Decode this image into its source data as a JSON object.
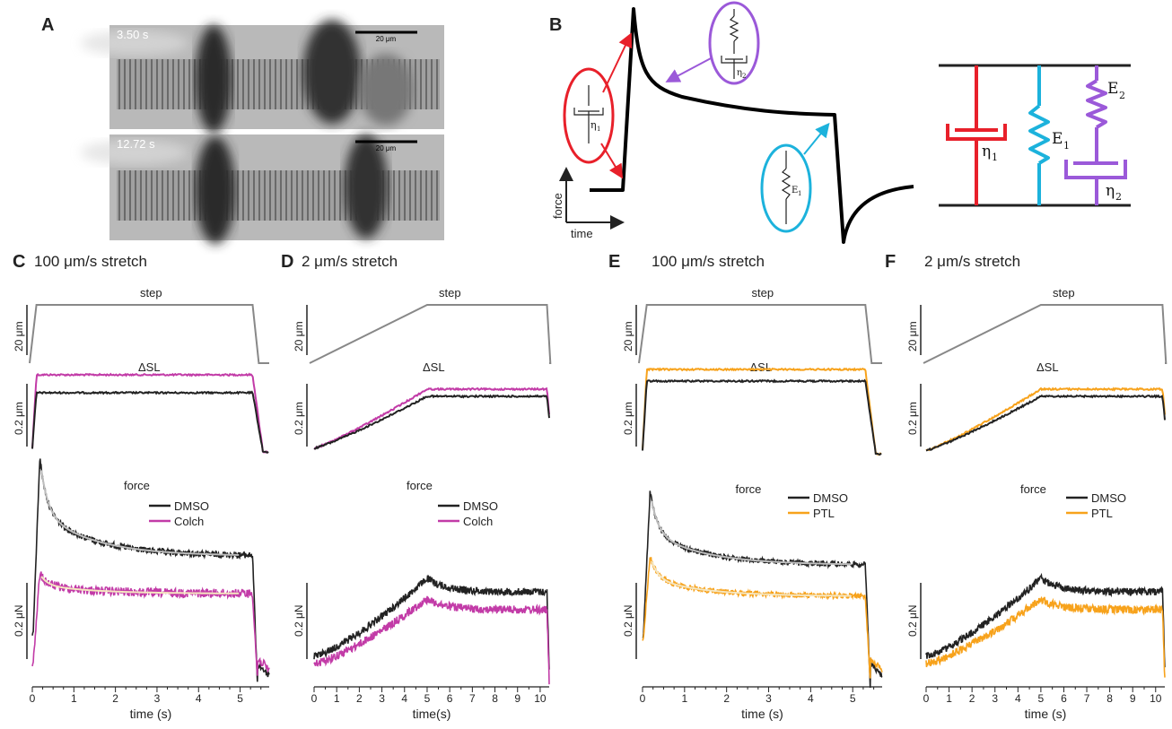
{
  "panel_A": {
    "label": "A",
    "frames": [
      {
        "time": "3.50 s",
        "scalebar": "20 μm"
      },
      {
        "time": "12.72 s",
        "scalebar": "20 μm"
      }
    ]
  },
  "panel_B": {
    "label": "B",
    "axis_y": "force",
    "axis_x": "time",
    "elements": {
      "eta1": "η",
      "eta1_sub": "1",
      "eta2": "η",
      "eta2_sub": "2",
      "E1": "E",
      "E1_sub": "1",
      "E2": "E",
      "E2_sub": "2"
    },
    "colors": {
      "eta1": "#e8202a",
      "E1": "#1cb2dc",
      "E2_eta2": "#9b59d9",
      "trace": "#000000"
    }
  },
  "chart_data": [
    {
      "panel": "C",
      "type": "line",
      "title": "100 μm/s stretch",
      "duration": 5,
      "traces": {
        "step": "step",
        "dsl": "ΔSL",
        "force": "force"
      },
      "scalebars": {
        "step": "20 μm",
        "dsl": "0.2 μm",
        "force": "0.2 μN"
      },
      "series": [
        {
          "name": "DMSO",
          "color": "#222222"
        },
        {
          "name": "Colch",
          "color": "#c23ba7"
        }
      ],
      "xlabel": "time (s)",
      "xticks": [
        "0",
        "1",
        "2",
        "3",
        "4",
        "5"
      ],
      "xlim": [
        0,
        5.7
      ]
    },
    {
      "panel": "D",
      "type": "line",
      "title": "2 μm/s stretch",
      "duration": 10,
      "traces": {
        "step": "step",
        "dsl": "ΔSL",
        "force": "force"
      },
      "scalebars": {
        "step": "20 μm",
        "dsl": "0.2 μm",
        "force": "0.2 μN"
      },
      "series": [
        {
          "name": "DMSO",
          "color": "#222222"
        },
        {
          "name": "Colch",
          "color": "#c23ba7"
        }
      ],
      "xlabel": "time(s)",
      "xticks": [
        "0",
        "1",
        "2",
        "3",
        "4",
        "5",
        "6",
        "7",
        "8",
        "9",
        "10"
      ],
      "xlim": [
        0,
        10.4
      ]
    },
    {
      "panel": "E",
      "type": "line",
      "title": "100 μm/s stretch",
      "duration": 5,
      "traces": {
        "step": "step",
        "dsl": "ΔSL",
        "force": "force"
      },
      "scalebars": {
        "step": "20 μm",
        "dsl": "0.2 μm",
        "force": "0.2 μN"
      },
      "series": [
        {
          "name": "DMSO",
          "color": "#222222"
        },
        {
          "name": "PTL",
          "color": "#f7a21b"
        }
      ],
      "xlabel": "time (s)",
      "xticks": [
        "0",
        "1",
        "2",
        "3",
        "4",
        "5"
      ],
      "xlim": [
        0,
        5.7
      ]
    },
    {
      "panel": "F",
      "type": "line",
      "title": "2 μm/s stretch",
      "duration": 10,
      "traces": {
        "step": "step",
        "dsl": "ΔSL",
        "force": "force"
      },
      "scalebars": {
        "step": "20 μm",
        "dsl": "0.2 μm",
        "force": "0.2 μN"
      },
      "series": [
        {
          "name": "DMSO",
          "color": "#222222"
        },
        {
          "name": "PTL",
          "color": "#f7a21b"
        }
      ],
      "xlabel": "time (s)",
      "xticks": [
        "0",
        "1",
        "2",
        "3",
        "4",
        "5",
        "6",
        "7",
        "8",
        "9",
        "10"
      ],
      "xlim": [
        0,
        10.4
      ]
    }
  ]
}
